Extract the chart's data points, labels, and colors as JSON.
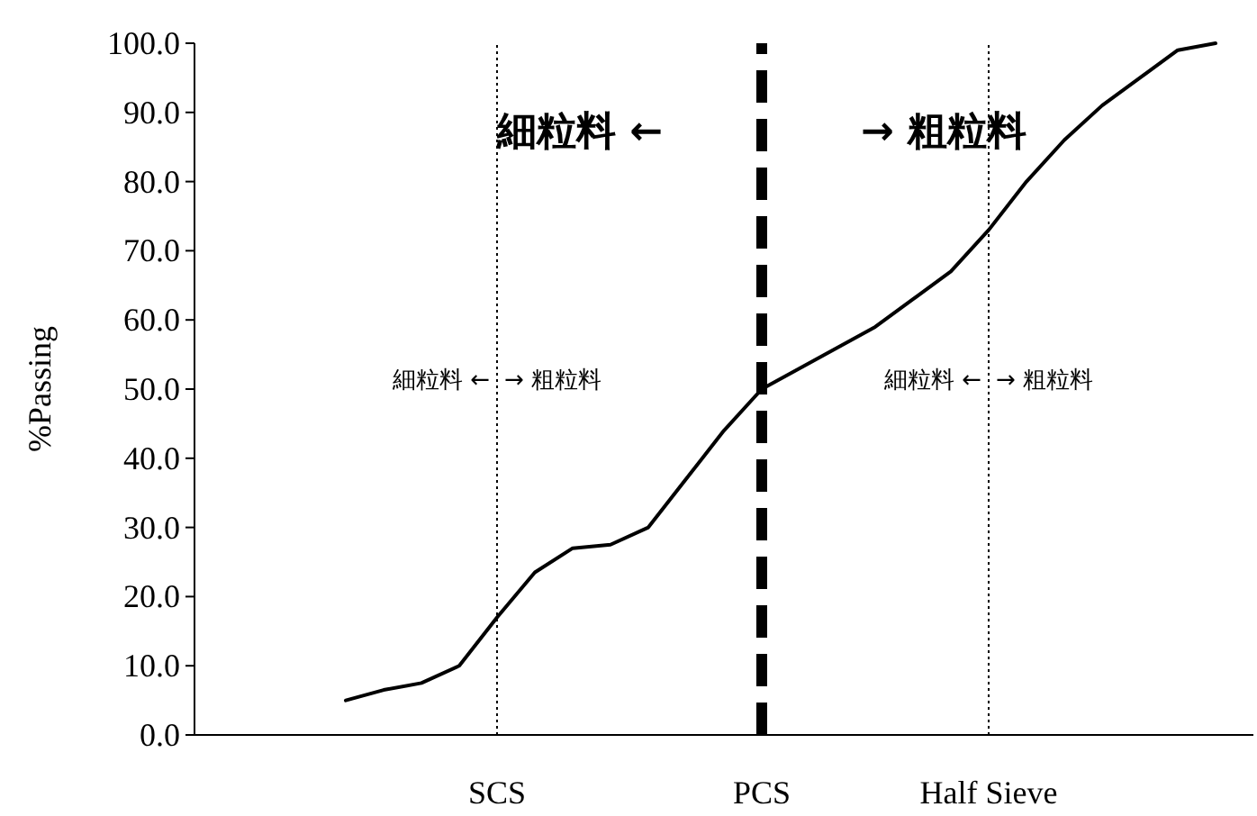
{
  "chart_data": {
    "type": "line",
    "ylabel": "%Passing",
    "categories": [
      null,
      null,
      null,
      null,
      null,
      null,
      null,
      null,
      "SCS",
      null,
      null,
      null,
      null,
      null,
      null,
      "PCS",
      null,
      null,
      null,
      null,
      null,
      "Half Sieve",
      null,
      null,
      null,
      null,
      null,
      null,
      null
    ],
    "values": [
      null,
      null,
      null,
      null,
      5.0,
      6.5,
      7.5,
      10,
      17,
      23.5,
      27,
      27.5,
      30,
      37,
      44,
      50,
      53,
      56,
      59,
      63,
      67,
      73,
      80,
      86,
      91,
      95,
      99,
      100,
      null
    ],
    "color": "#000000",
    "ylim": [
      0,
      100
    ],
    "yticks": [
      {
        "value": 0,
        "label": "0.0"
      },
      {
        "value": 10,
        "label": "10.0"
      },
      {
        "value": 20,
        "label": "20.0"
      },
      {
        "value": 30,
        "label": "30.0"
      },
      {
        "value": 40,
        "label": "40.0"
      },
      {
        "value": 50,
        "label": "50.0"
      },
      {
        "value": 60,
        "label": "60.0"
      },
      {
        "value": 70,
        "label": "70.0"
      },
      {
        "value": 80,
        "label": "80.0"
      },
      {
        "value": 90,
        "label": "90.0"
      },
      {
        "value": 100,
        "label": "100.0"
      }
    ],
    "ref_lines": [
      {
        "axis": "x",
        "value": "SCS",
        "line_style": "dotted"
      },
      {
        "axis": "x",
        "value": "PCS",
        "line_style": "dashed"
      },
      {
        "axis": "x",
        "value": "Half Sieve",
        "line_style": "dotted"
      }
    ],
    "annotations": [
      "細粒料 ←",
      "→ 粗粒料",
      "細粒料 ←",
      "→ 粗粒料",
      "細粒料 ←",
      "→ 粗粒料"
    ],
    "grid": false,
    "marker": "none",
    "line_style": "solid"
  }
}
